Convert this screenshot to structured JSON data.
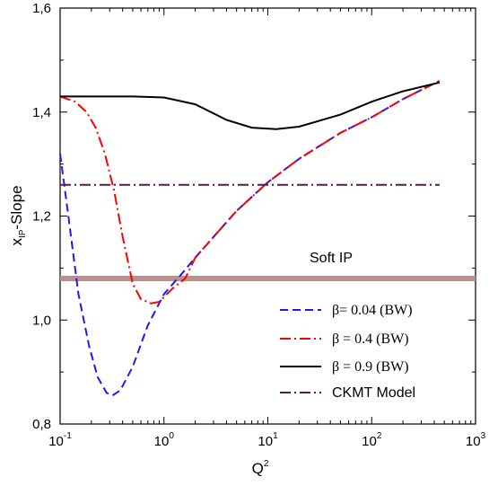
{
  "chart_data": {
    "type": "line",
    "xlabel_base": "Q",
    "xlabel_sup": "2",
    "ylabel_main": "x",
    "ylabel_sub": "IP",
    "ylabel_rest": "-Slope",
    "xscale": "log",
    "xlim": [
      0.1,
      1000
    ],
    "ylim": [
      0.8,
      1.6
    ],
    "xticks": [
      {
        "base": "10",
        "exp": "-1"
      },
      {
        "base": "10",
        "exp": "0"
      },
      {
        "base": "10",
        "exp": "1"
      },
      {
        "base": "10",
        "exp": "2"
      },
      {
        "base": "10",
        "exp": "3"
      }
    ],
    "yticks": [
      "0,8",
      "1,0",
      "1,2",
      "1,4",
      "1,6"
    ],
    "yticks_values": [
      0.8,
      1.0,
      1.2,
      1.4,
      1.6
    ],
    "annotation": "Soft IP",
    "band": {
      "y": 1.08,
      "color": "#bc8f8f"
    },
    "legend_position": "lower-right",
    "series": [
      {
        "name": "β= 0.04 (BW)",
        "color": "#1a1aff",
        "dash": "dashed",
        "points": [
          [
            0.1,
            1.32
          ],
          [
            0.12,
            1.2
          ],
          [
            0.15,
            1.05
          ],
          [
            0.19,
            0.95
          ],
          [
            0.23,
            0.89
          ],
          [
            0.28,
            0.86
          ],
          [
            0.32,
            0.855
          ],
          [
            0.38,
            0.865
          ],
          [
            0.5,
            0.91
          ],
          [
            0.7,
            0.99
          ],
          [
            1.0,
            1.05
          ],
          [
            1.5,
            1.09
          ],
          [
            2.0,
            1.12
          ],
          [
            3.0,
            1.16
          ],
          [
            5.0,
            1.21
          ],
          [
            10,
            1.265
          ],
          [
            20,
            1.31
          ],
          [
            50,
            1.36
          ],
          [
            100,
            1.39
          ],
          [
            200,
            1.425
          ],
          [
            450,
            1.46
          ]
        ]
      },
      {
        "name": "β = 0.4 (BW)",
        "color": "#ff0000",
        "dash": "dashdot",
        "points": [
          [
            0.1,
            1.43
          ],
          [
            0.14,
            1.42
          ],
          [
            0.18,
            1.4
          ],
          [
            0.22,
            1.37
          ],
          [
            0.27,
            1.32
          ],
          [
            0.33,
            1.25
          ],
          [
            0.4,
            1.16
          ],
          [
            0.5,
            1.07
          ],
          [
            0.6,
            1.04
          ],
          [
            0.75,
            1.032
          ],
          [
            0.9,
            1.035
          ],
          [
            1.2,
            1.06
          ],
          [
            1.6,
            1.08
          ],
          [
            2.0,
            1.12
          ],
          [
            3.0,
            1.16
          ],
          [
            5.0,
            1.21
          ],
          [
            10,
            1.265
          ],
          [
            20,
            1.31
          ],
          [
            50,
            1.36
          ],
          [
            100,
            1.39
          ],
          [
            200,
            1.425
          ],
          [
            450,
            1.46
          ]
        ]
      },
      {
        "name": "β = 0.9  (BW)",
        "color": "#000000",
        "dash": "solid",
        "points": [
          [
            0.1,
            1.43
          ],
          [
            0.5,
            1.43
          ],
          [
            1.0,
            1.428
          ],
          [
            2.0,
            1.415
          ],
          [
            4.0,
            1.385
          ],
          [
            7.0,
            1.37
          ],
          [
            12,
            1.367
          ],
          [
            20,
            1.372
          ],
          [
            50,
            1.395
          ],
          [
            100,
            1.42
          ],
          [
            200,
            1.44
          ],
          [
            450,
            1.457
          ]
        ]
      },
      {
        "name": "CKMT Model",
        "color": "#5a1a4a",
        "dash": "dashdot",
        "points": [
          [
            0.1,
            1.26
          ],
          [
            450,
            1.26
          ]
        ]
      }
    ]
  }
}
